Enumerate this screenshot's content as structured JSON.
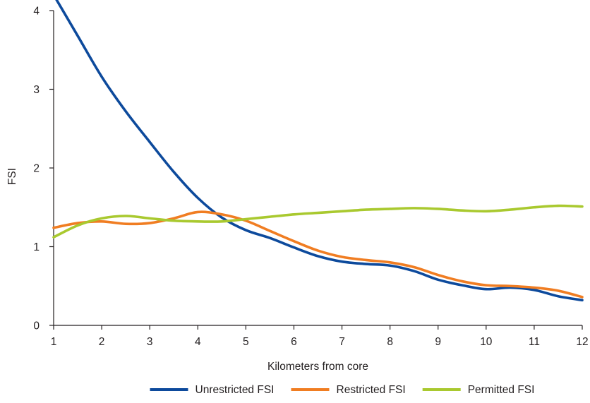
{
  "chart_data": {
    "type": "line",
    "title": "",
    "xlabel": "Kilometers from core",
    "ylabel": "FSI",
    "xlim": [
      1,
      12
    ],
    "ylim": [
      0,
      4
    ],
    "x_ticks": [
      1,
      2,
      3,
      4,
      5,
      6,
      7,
      8,
      9,
      10,
      11,
      12
    ],
    "y_ticks": [
      0,
      1,
      2,
      3,
      4
    ],
    "grid": false,
    "legend_position": "bottom",
    "series": [
      {
        "name": "Unrestricted FSI",
        "color": "#0d4a9c",
        "x": [
          1,
          1.5,
          2,
          2.5,
          3,
          3.5,
          4,
          4.5,
          5,
          5.5,
          6,
          6.5,
          7,
          7.5,
          8,
          8.5,
          9,
          9.5,
          10,
          10.5,
          11,
          11.5,
          12
        ],
        "y": [
          4.2,
          3.68,
          3.16,
          2.72,
          2.33,
          1.95,
          1.62,
          1.37,
          1.21,
          1.11,
          0.99,
          0.88,
          0.81,
          0.78,
          0.76,
          0.69,
          0.58,
          0.51,
          0.46,
          0.48,
          0.45,
          0.37,
          0.32
        ]
      },
      {
        "name": "Restricted FSI",
        "color": "#f07d22",
        "x": [
          1,
          1.5,
          2,
          2.5,
          3,
          3.5,
          4,
          4.5,
          5,
          5.5,
          6,
          6.5,
          7,
          7.5,
          8,
          8.5,
          9,
          9.5,
          10,
          10.5,
          11,
          11.5,
          12
        ],
        "y": [
          1.24,
          1.3,
          1.32,
          1.29,
          1.3,
          1.36,
          1.44,
          1.41,
          1.33,
          1.2,
          1.07,
          0.95,
          0.87,
          0.83,
          0.8,
          0.74,
          0.64,
          0.56,
          0.51,
          0.5,
          0.48,
          0.44,
          0.36
        ]
      },
      {
        "name": "Permitted FSI",
        "color": "#a9c92f",
        "x": [
          1,
          1.5,
          2,
          2.5,
          3,
          3.5,
          4,
          4.5,
          5,
          5.5,
          6,
          6.5,
          7,
          7.5,
          8,
          8.5,
          9,
          9.5,
          10,
          10.5,
          11,
          11.5,
          12
        ],
        "y": [
          1.12,
          1.27,
          1.36,
          1.39,
          1.36,
          1.33,
          1.32,
          1.32,
          1.35,
          1.38,
          1.41,
          1.43,
          1.45,
          1.47,
          1.48,
          1.49,
          1.48,
          1.46,
          1.45,
          1.47,
          1.5,
          1.52,
          1.51
        ]
      }
    ]
  }
}
